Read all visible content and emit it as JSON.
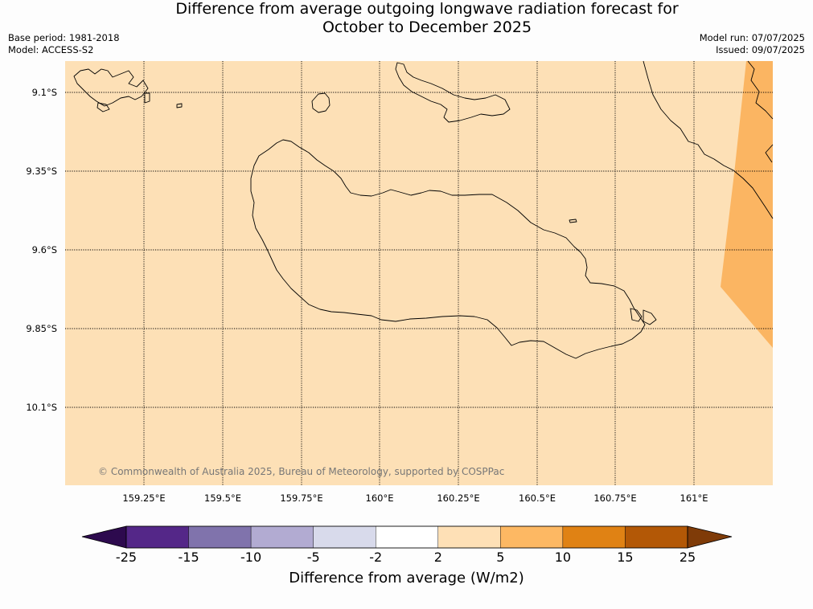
{
  "header": {
    "title_line1": "Difference from average outgoing longwave radiation forecast for",
    "title_line2": "October to December 2025",
    "base_period": "Base period: 1981-2018",
    "model": "Model: ACCESS-S2",
    "model_run": "Model run: 07/07/2025",
    "issued": "Issued: 09/07/2025"
  },
  "map": {
    "background_color": "#fde0b6",
    "anomaly_fill_color": "#fbb562",
    "coastline_color": "#000000",
    "lat_labels": [
      "9.1°S",
      "9.35°S",
      "9.6°S",
      "9.85°S",
      "10.1°S"
    ],
    "lon_labels": [
      "159.25°E",
      "159.5°E",
      "159.75°E",
      "160°E",
      "160.25°E",
      "160.5°E",
      "160.75°E",
      "161°E"
    ],
    "copyright": "© Commonwealth of Australia 2025, Bureau of Meteorology, supported by COSPPac"
  },
  "colorbar": {
    "title": "Difference from average (W/m2)",
    "ticks": [
      "-25",
      "-15",
      "-10",
      "-5",
      "-2",
      "2",
      "5",
      "10",
      "15",
      "25"
    ],
    "low_extend_color": "#2d0a4e",
    "high_extend_color": "#7f3b08",
    "colors": [
      "#542788",
      "#8073ac",
      "#b2abd2",
      "#d8daeb",
      "#ffffff",
      "#fee0b6",
      "#fdb863",
      "#e08214",
      "#b35806"
    ]
  }
}
